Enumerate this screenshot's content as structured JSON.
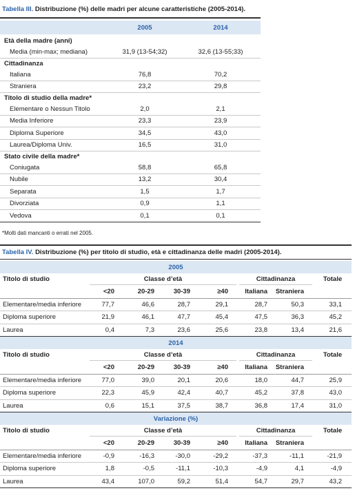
{
  "table_iii": {
    "caption_label": "Tabella III.",
    "caption": "Distribuzione (%) delle madri per alcune caratteristiche (2005-2014).",
    "columns": [
      "2005",
      "2014"
    ],
    "sections": [
      {
        "title": "Età della madre (anni)",
        "rows": [
          [
            "Media (min-max; mediana)",
            "31,9 (13-54;32)",
            "32,6 (13-55;33)"
          ]
        ]
      },
      {
        "title": "Cittadinanza",
        "rows": [
          [
            "Italiana",
            "76,8",
            "70,2"
          ],
          [
            "Straniera",
            "23,2",
            "29,8"
          ]
        ]
      },
      {
        "title": "Titolo di studio della madre*",
        "rows": [
          [
            "Elementare o Nessun Titolo",
            "2,0",
            "2,1"
          ],
          [
            "Media Inferiore",
            "23,3",
            "23,9"
          ],
          [
            "Diploma Superiore",
            "34,5",
            "43,0"
          ],
          [
            "Laurea/Diploma Univ.",
            "16,5",
            "31,0"
          ]
        ]
      },
      {
        "title": "Stato civile della madre*",
        "rows": [
          [
            "Coniugata",
            "58,8",
            "65,8"
          ],
          [
            "Nubile",
            "13,2",
            "30,4"
          ],
          [
            "Separata",
            "1,5",
            "1,7"
          ],
          [
            "Divorziata",
            "0,9",
            "1,1"
          ],
          [
            "Vedova",
            "0,1",
            "0,1"
          ]
        ]
      }
    ],
    "footnote": "*Molti dati mancanti o errati nel 2005."
  },
  "table_iv": {
    "caption_label": "Tabella IV.",
    "caption": "Distribuzione (%) per titolo di studio, età e cittadinanza delle madri (2005-2014).",
    "blocks": [
      {
        "title": "2005",
        "header": {
          "label": "Titolo di studio",
          "groups": [
            "Classe d’età",
            "Cittadinanza"
          ],
          "total": "Totale",
          "subcolumns": [
            "<20",
            "20-29",
            "30-39",
            "≥40",
            "Italiana",
            "Straniera"
          ]
        },
        "rows": [
          [
            "Elementare/media inferiore",
            "77,7",
            "46,6",
            "28,7",
            "29,1",
            "28,7",
            "50,3",
            "33,1"
          ],
          [
            "Diploma superiore",
            "21,9",
            "46,1",
            "47,7",
            "45,4",
            "47,5",
            "36,3",
            "45,2"
          ],
          [
            "Laurea",
            "0,4",
            "7,3",
            "23,6",
            "25,6",
            "23,8",
            "13,4",
            "21,6"
          ]
        ]
      },
      {
        "title": "2014",
        "header": {
          "label": "Titolo di studio",
          "groups": [
            "Classe d’età",
            "Cittadinanza"
          ],
          "total": "Totale",
          "subcolumns": [
            "<20",
            "20-29",
            "30-39",
            "≥40",
            "Italiana",
            "Straniera"
          ]
        },
        "rows": [
          [
            "Elementare/media inferiore",
            "77,0",
            "39,0",
            "20,1",
            "20,6",
            "18,0",
            "44,7",
            "25,9"
          ],
          [
            "Diploma superiore",
            "22,3",
            "45,9",
            "42,4",
            "40,7",
            "45,2",
            "37,8",
            "43,0"
          ],
          [
            "Laurea",
            "0,6",
            "15,1",
            "37,5",
            "38,7",
            "36,8",
            "17,4",
            "31,0"
          ]
        ]
      },
      {
        "title": "Variazione (%)",
        "header": {
          "label": "Titolo di studio",
          "groups": [
            "Classe d’età",
            "Cittadinanza"
          ],
          "total": "Totale",
          "subcolumns": [
            "<20",
            "20-29",
            "30-39",
            "≥40",
            "Italiana",
            "Straniera"
          ]
        },
        "rows": [
          [
            "Elementare/media inferiore",
            "-0,9",
            "-16,3",
            "-30,0",
            "-29,2",
            "-37,3",
            "-11,1",
            "-21,9"
          ],
          [
            "Diploma superiore",
            "1,8",
            "-0,5",
            "-11,1",
            "-10,3",
            "-4,9",
            "4,1",
            "-4,9"
          ],
          [
            "Laurea",
            "43,4",
            "107,0",
            "59,2",
            "51,4",
            "54,7",
            "29,7",
            "43,2"
          ]
        ]
      }
    ]
  }
}
